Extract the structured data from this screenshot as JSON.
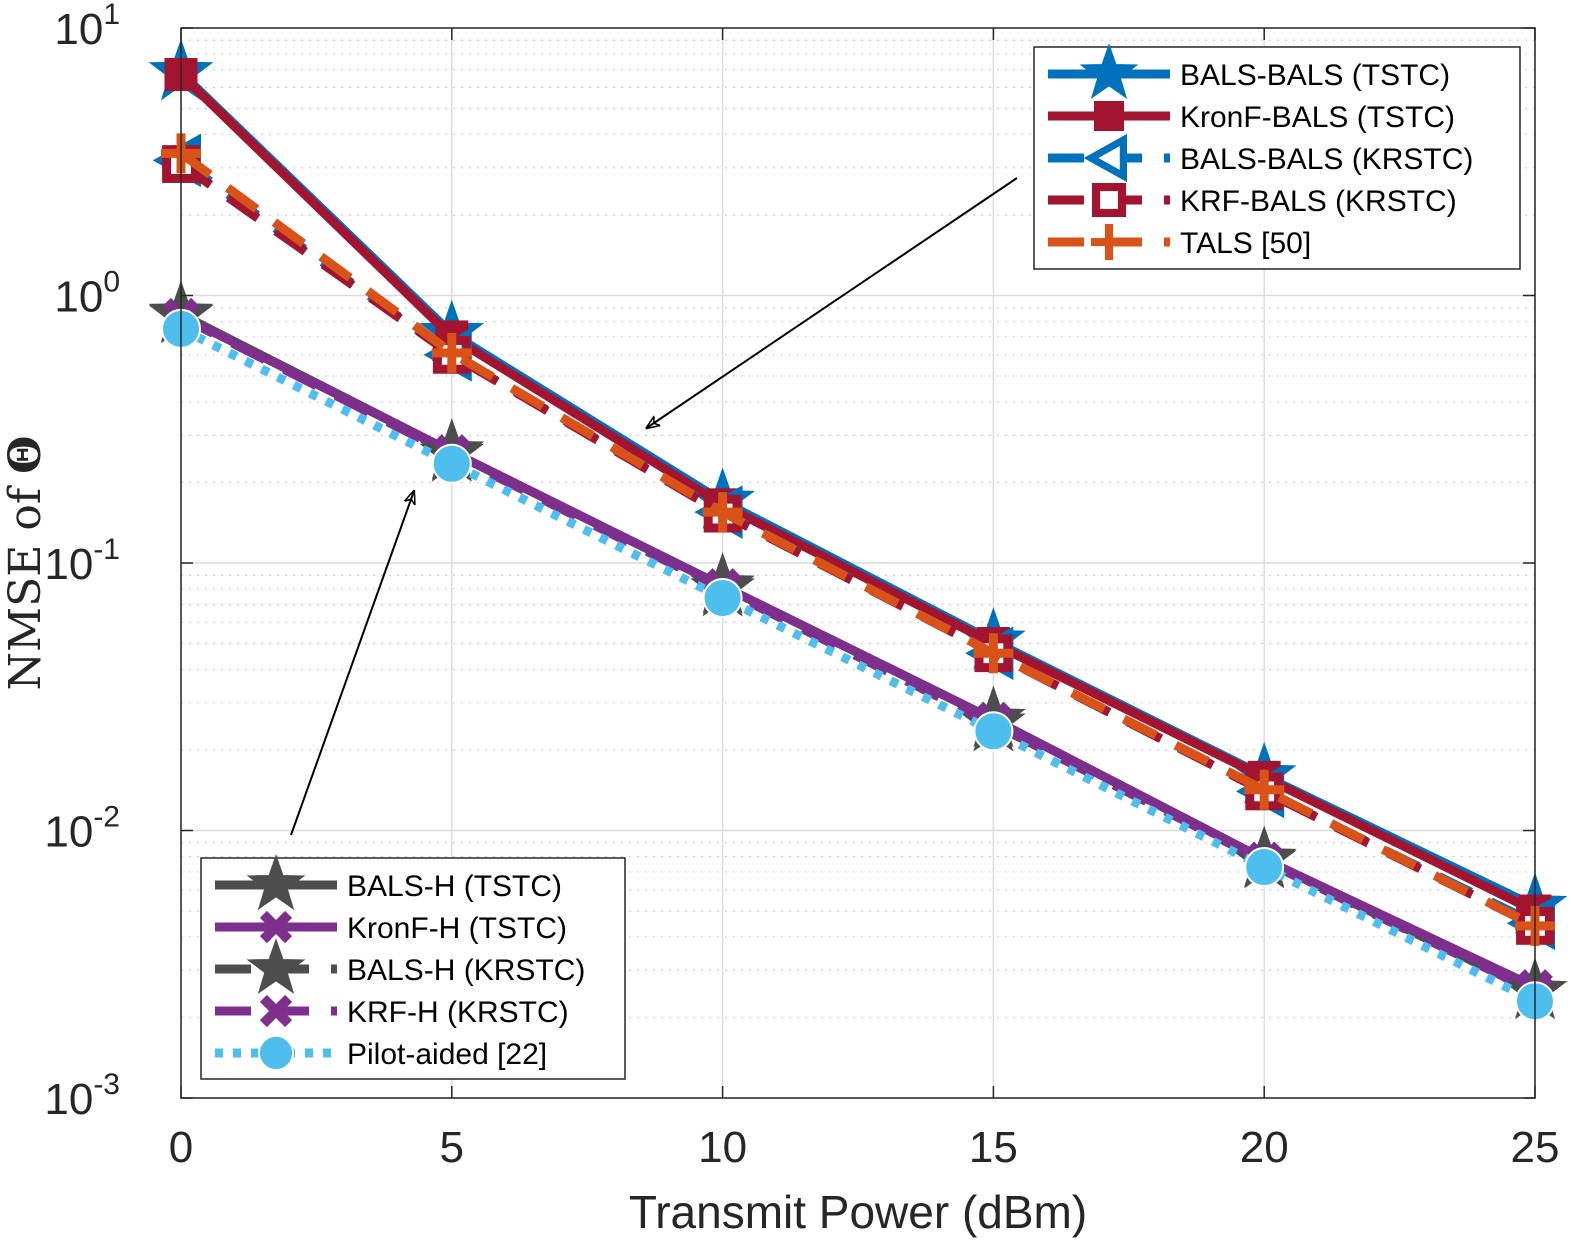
{
  "chart_data": {
    "type": "line",
    "xlabel": "Transmit Power (dBm)",
    "ylabel_text": "NMSE of",
    "ylabel_symbol": "Θ",
    "yscale": "log",
    "xlim": [
      0,
      25
    ],
    "ylim": [
      0.001,
      10
    ],
    "grid": true,
    "x": [
      0,
      5,
      10,
      15,
      20,
      25
    ],
    "x_tick_labels": [
      "0",
      "5",
      "10",
      "15",
      "20",
      "25"
    ],
    "y_ticks": [
      {
        "value": 10,
        "base": "10",
        "exp": "1"
      },
      {
        "value": 1,
        "base": "10",
        "exp": "0"
      },
      {
        "value": 0.1,
        "base": "10",
        "exp": "-1"
      },
      {
        "value": 0.01,
        "base": "10",
        "exp": "-2"
      },
      {
        "value": 0.001,
        "base": "10",
        "exp": "-3"
      }
    ],
    "series": [
      {
        "name": "BALS-BALS (TSTC)",
        "color": "#0072BD",
        "dash": "solid",
        "marker": "star-filled",
        "values": [
          6.8,
          0.72,
          0.17,
          0.051,
          0.016,
          0.0052
        ]
      },
      {
        "name": "KronF-BALS (TSTC)",
        "color": "#A2142F",
        "dash": "solid",
        "marker": "square-filled",
        "values": [
          6.7,
          0.7,
          0.165,
          0.05,
          0.0158,
          0.005
        ]
      },
      {
        "name": "BALS-BALS (KRSTC)",
        "color": "#0072BD",
        "dash": "dashed",
        "marker": "triangle-left-open",
        "values": [
          3.2,
          0.6,
          0.155,
          0.046,
          0.014,
          0.0045
        ]
      },
      {
        "name": "KRF-BALS (KRSTC)",
        "color": "#A2142F",
        "dash": "dashed",
        "marker": "square-open",
        "values": [
          3.1,
          0.6,
          0.153,
          0.046,
          0.014,
          0.0044
        ]
      },
      {
        "name": "TALS [50]",
        "color": "#D95319",
        "dash": "dashed",
        "marker": "plus",
        "values": [
          3.4,
          0.61,
          0.155,
          0.046,
          0.0142,
          0.0044
        ]
      },
      {
        "name": "BALS-H (TSTC)",
        "color": "#4D4D4D",
        "dash": "solid",
        "marker": "star-filled",
        "values": [
          0.85,
          0.26,
          0.082,
          0.026,
          0.0078,
          0.0025
        ]
      },
      {
        "name": "KronF-H (TSTC)",
        "color": "#7E2F8E",
        "dash": "solid",
        "marker": "x-thick",
        "values": [
          0.84,
          0.26,
          0.082,
          0.026,
          0.0078,
          0.0026
        ]
      },
      {
        "name": "BALS-H (KRSTC)",
        "color": "#4D4D4D",
        "dash": "dashed",
        "marker": "star-filled",
        "values": [
          0.84,
          0.255,
          0.08,
          0.025,
          0.0077,
          0.0025
        ]
      },
      {
        "name": "KRF-H (KRSTC)",
        "color": "#7E2F8E",
        "dash": "dashed",
        "marker": "x-thick",
        "values": [
          0.83,
          0.255,
          0.08,
          0.025,
          0.0077,
          0.0025
        ]
      },
      {
        "name": "Pilot-aided [22]",
        "color": "#4DBEEE",
        "dash": "dotted",
        "marker": "circle-filled",
        "values": [
          0.75,
          0.235,
          0.074,
          0.0235,
          0.0073,
          0.0023
        ]
      }
    ],
    "legends": [
      {
        "placement": "top-right",
        "entries": [
          "BALS-BALS (TSTC)",
          "KronF-BALS (TSTC)",
          "BALS-BALS (KRSTC)",
          "KRF-BALS (KRSTC)",
          "TALS [50]"
        ]
      },
      {
        "placement": "bottom-left",
        "entries": [
          "BALS-H (TSTC)",
          "KronF-H (TSTC)",
          "BALS-H (KRSTC)",
          "KRF-H (KRSTC)",
          "Pilot-aided [22]"
        ]
      }
    ],
    "annotations": [
      {
        "type": "arrow",
        "from_legend": "top-right",
        "to_series_group": "BALS curves",
        "x_data": 8.6,
        "y_data": 0.32
      },
      {
        "type": "arrow",
        "from_legend": "bottom-left",
        "to_series_group": "H curves",
        "x_data": 4.3,
        "y_data": 0.24
      }
    ]
  }
}
